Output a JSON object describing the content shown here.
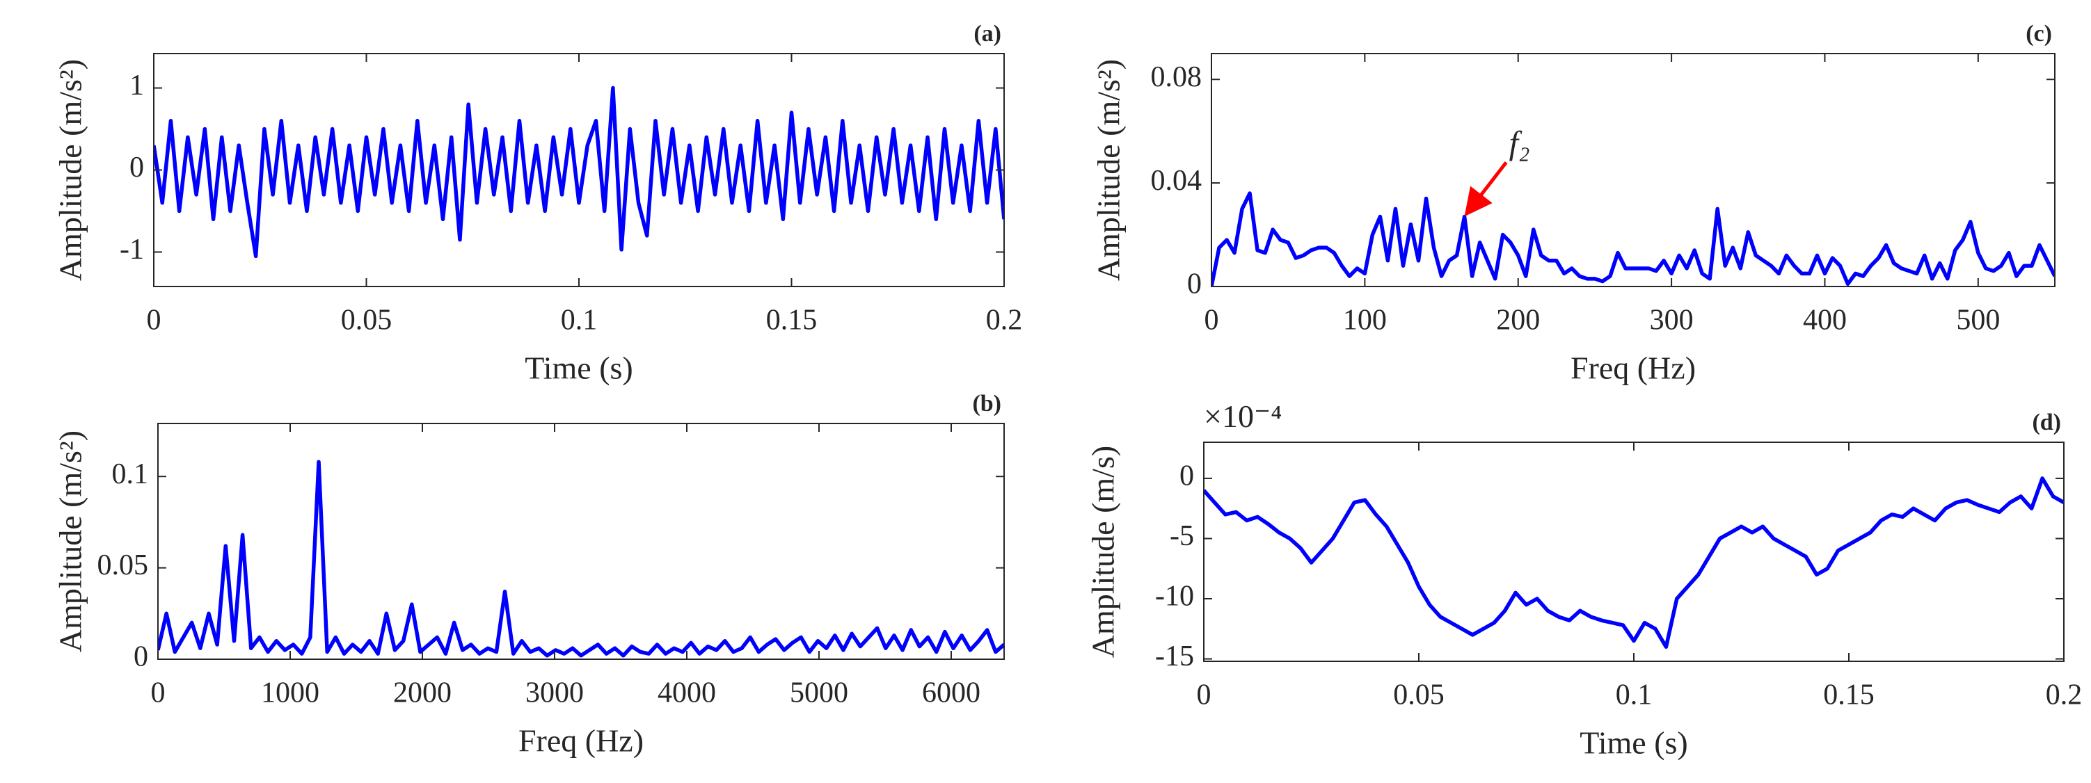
{
  "chart_data": [
    {
      "type": "line",
      "title": "(a)",
      "xlabel": "Time (s)",
      "ylabel": "Amplitude (m/s²)",
      "color": "#0000ff",
      "xlim": [
        0,
        0.2
      ],
      "xticks": [
        0,
        0.05,
        0.1,
        0.15,
        0.2
      ],
      "ylim": [
        -1.42,
        1.42
      ],
      "yticks": [
        -1,
        0,
        1
      ],
      "x": [
        0,
        0.002,
        0.004,
        0.006,
        0.008,
        0.01,
        0.012,
        0.014,
        0.016,
        0.018,
        0.02,
        0.022,
        0.024,
        0.026,
        0.028,
        0.03,
        0.032,
        0.034,
        0.036,
        0.038,
        0.04,
        0.042,
        0.044,
        0.046,
        0.048,
        0.05,
        0.052,
        0.054,
        0.056,
        0.058,
        0.06,
        0.062,
        0.064,
        0.066,
        0.068,
        0.07,
        0.072,
        0.074,
        0.076,
        0.078,
        0.08,
        0.082,
        0.084,
        0.086,
        0.088,
        0.09,
        0.092,
        0.094,
        0.096,
        0.098,
        0.1,
        0.102,
        0.104,
        0.106,
        0.108,
        0.11,
        0.112,
        0.114,
        0.116,
        0.118,
        0.12,
        0.122,
        0.124,
        0.126,
        0.128,
        0.13,
        0.132,
        0.134,
        0.136,
        0.138,
        0.14,
        0.142,
        0.144,
        0.146,
        0.148,
        0.15,
        0.152,
        0.154,
        0.156,
        0.158,
        0.16,
        0.162,
        0.164,
        0.166,
        0.168,
        0.17,
        0.172,
        0.174,
        0.176,
        0.178,
        0.18,
        0.182,
        0.184,
        0.186,
        0.188,
        0.19,
        0.192,
        0.194,
        0.196,
        0.198,
        0.2
      ],
      "values": [
        0.3,
        -0.4,
        0.6,
        -0.5,
        0.4,
        -0.3,
        0.5,
        -0.6,
        0.4,
        -0.5,
        0.3,
        -0.4,
        -1.05,
        0.5,
        -0.3,
        0.6,
        -0.4,
        0.3,
        -0.5,
        0.4,
        -0.3,
        0.5,
        -0.4,
        0.3,
        -0.5,
        0.4,
        -0.3,
        0.5,
        -0.4,
        0.3,
        -0.5,
        0.6,
        -0.4,
        0.3,
        -0.6,
        0.4,
        -0.85,
        0.8,
        -0.4,
        0.5,
        -0.3,
        0.4,
        -0.5,
        0.6,
        -0.4,
        0.3,
        -0.5,
        0.4,
        -0.3,
        0.5,
        -0.4,
        0.3,
        0.6,
        -0.5,
        1.0,
        -0.97,
        0.5,
        -0.4,
        -0.8,
        0.6,
        -0.3,
        0.5,
        -0.4,
        0.3,
        -0.5,
        0.4,
        -0.3,
        0.5,
        -0.4,
        0.3,
        -0.5,
        0.6,
        -0.4,
        0.3,
        -0.6,
        0.7,
        -0.4,
        0.5,
        -0.3,
        0.4,
        -0.5,
        0.6,
        -0.4,
        0.3,
        -0.5,
        0.4,
        -0.3,
        0.5,
        -0.4,
        0.3,
        -0.5,
        0.4,
        -0.6,
        0.5,
        -0.4,
        0.3,
        -0.5,
        0.6,
        -0.4,
        0.5,
        -0.6
      ]
    },
    {
      "type": "line",
      "title": "(b)",
      "xlabel": "Freq (Hz)",
      "ylabel": "Amplitude (m/s²)",
      "color": "#0000ff",
      "xlim": [
        0,
        6400
      ],
      "xticks": [
        0,
        1000,
        2000,
        3000,
        4000,
        5000,
        6000
      ],
      "ylim": [
        0,
        0.129
      ],
      "yticks": [
        0,
        0.05,
        0.1
      ],
      "x": [
        0,
        64,
        128,
        192,
        256,
        320,
        384,
        448,
        512,
        576,
        640,
        704,
        768,
        832,
        896,
        960,
        1024,
        1088,
        1152,
        1216,
        1280,
        1344,
        1408,
        1472,
        1536,
        1600,
        1664,
        1728,
        1792,
        1856,
        1920,
        1984,
        2048,
        2112,
        2176,
        2240,
        2304,
        2368,
        2432,
        2496,
        2560,
        2624,
        2688,
        2752,
        2816,
        2880,
        2944,
        3008,
        3072,
        3136,
        3200,
        3264,
        3328,
        3392,
        3456,
        3520,
        3584,
        3648,
        3712,
        3776,
        3840,
        3904,
        3968,
        4032,
        4096,
        4160,
        4224,
        4288,
        4352,
        4416,
        4480,
        4544,
        4608,
        4672,
        4736,
        4800,
        4864,
        4928,
        4992,
        5056,
        5120,
        5184,
        5248,
        5312,
        5376,
        5440,
        5504,
        5568,
        5632,
        5696,
        5760,
        5824,
        5888,
        5952,
        6016,
        6080,
        6144,
        6208,
        6272,
        6336,
        6400
      ],
      "values": [
        0.005,
        0.025,
        0.004,
        0.012,
        0.02,
        0.006,
        0.025,
        0.008,
        0.062,
        0.01,
        0.068,
        0.006,
        0.012,
        0.004,
        0.01,
        0.005,
        0.008,
        0.003,
        0.012,
        0.108,
        0.004,
        0.012,
        0.003,
        0.008,
        0.004,
        0.01,
        0.003,
        0.025,
        0.005,
        0.01,
        0.03,
        0.004,
        0.008,
        0.012,
        0.003,
        0.02,
        0.005,
        0.008,
        0.003,
        0.006,
        0.004,
        0.037,
        0.003,
        0.01,
        0.004,
        0.006,
        0.002,
        0.005,
        0.003,
        0.006,
        0.002,
        0.005,
        0.008,
        0.003,
        0.006,
        0.002,
        0.007,
        0.004,
        0.003,
        0.008,
        0.003,
        0.006,
        0.004,
        0.009,
        0.003,
        0.007,
        0.005,
        0.01,
        0.004,
        0.006,
        0.012,
        0.004,
        0.008,
        0.011,
        0.005,
        0.009,
        0.012,
        0.004,
        0.01,
        0.006,
        0.013,
        0.005,
        0.014,
        0.007,
        0.012,
        0.017,
        0.006,
        0.013,
        0.005,
        0.016,
        0.007,
        0.012,
        0.004,
        0.015,
        0.006,
        0.013,
        0.005,
        0.01,
        0.016,
        0.004,
        0.008
      ]
    },
    {
      "type": "line",
      "title": "(c)",
      "xlabel": "Freq (Hz)",
      "ylabel": "Amplitude (m/s²)",
      "color": "#0000ff",
      "xlim": [
        0,
        550
      ],
      "xticks": [
        0,
        100,
        200,
        300,
        400,
        500
      ],
      "ylim": [
        0,
        0.09
      ],
      "yticks": [
        0,
        0.04,
        0.08
      ],
      "x": [
        0,
        5,
        10,
        15,
        20,
        25,
        30,
        35,
        40,
        45,
        50,
        55,
        60,
        65,
        70,
        75,
        80,
        85,
        90,
        95,
        100,
        105,
        110,
        115,
        120,
        125,
        130,
        135,
        140,
        145,
        150,
        155,
        160,
        165,
        170,
        175,
        180,
        185,
        190,
        195,
        200,
        205,
        210,
        215,
        220,
        225,
        230,
        235,
        240,
        245,
        250,
        255,
        260,
        265,
        270,
        275,
        280,
        285,
        290,
        295,
        300,
        305,
        310,
        315,
        320,
        325,
        330,
        335,
        340,
        345,
        350,
        355,
        360,
        365,
        370,
        375,
        380,
        385,
        390,
        395,
        400,
        405,
        410,
        415,
        420,
        425,
        430,
        435,
        440,
        445,
        450,
        455,
        460,
        465,
        470,
        475,
        480,
        485,
        490,
        495,
        500,
        505,
        510,
        515,
        520,
        525,
        530,
        535,
        540,
        545,
        550
      ],
      "values": [
        0,
        0.015,
        0.018,
        0.013,
        0.03,
        0.036,
        0.014,
        0.013,
        0.022,
        0.018,
        0.017,
        0.011,
        0.012,
        0.014,
        0.015,
        0.015,
        0.013,
        0.008,
        0.004,
        0.007,
        0.005,
        0.02,
        0.027,
        0.01,
        0.03,
        0.008,
        0.024,
        0.01,
        0.034,
        0.015,
        0.004,
        0.01,
        0.012,
        0.027,
        0.004,
        0.017,
        0.01,
        0.003,
        0.02,
        0.017,
        0.012,
        0.004,
        0.022,
        0.012,
        0.01,
        0.01,
        0.005,
        0.007,
        0.004,
        0.003,
        0.003,
        0.002,
        0.004,
        0.013,
        0.007,
        0.007,
        0.007,
        0.007,
        0.006,
        0.01,
        0.005,
        0.012,
        0.007,
        0.014,
        0.005,
        0.003,
        0.03,
        0.008,
        0.015,
        0.007,
        0.021,
        0.012,
        0.01,
        0.008,
        0.005,
        0.012,
        0.008,
        0.005,
        0.005,
        0.012,
        0.005,
        0.011,
        0.008,
        0.001,
        0.005,
        0.004,
        0.008,
        0.011,
        0.016,
        0.009,
        0.007,
        0.006,
        0.005,
        0.012,
        0.003,
        0.009,
        0.003,
        0.014,
        0.018,
        0.025,
        0.013,
        0.007,
        0.006,
        0.008,
        0.013,
        0.004,
        0.008,
        0.008,
        0.016,
        0.01,
        0.004
      ],
      "annotation": {
        "text": "f₂",
        "x": 165,
        "y": 0.027,
        "color": "#ff0000"
      }
    },
    {
      "type": "line",
      "title": "(d)",
      "xlabel": "Time (s)",
      "ylabel": "Amplitude (m/s)",
      "exponent_label": "×10⁻⁴",
      "color": "#0000ff",
      "xlim": [
        0,
        0.2
      ],
      "xticks": [
        0,
        0.05,
        0.1,
        0.15,
        0.2
      ],
      "ylim": [
        -15.2,
        3
      ],
      "yticks": [
        -15,
        -10,
        -5,
        0
      ],
      "x": [
        0,
        0.0025,
        0.005,
        0.0075,
        0.01,
        0.0125,
        0.015,
        0.0175,
        0.02,
        0.0225,
        0.025,
        0.0275,
        0.03,
        0.0325,
        0.035,
        0.0375,
        0.04,
        0.0425,
        0.045,
        0.0475,
        0.05,
        0.0525,
        0.055,
        0.0575,
        0.06,
        0.0625,
        0.065,
        0.0675,
        0.07,
        0.0725,
        0.075,
        0.0775,
        0.08,
        0.0825,
        0.085,
        0.0875,
        0.09,
        0.0925,
        0.095,
        0.0975,
        0.1,
        0.1025,
        0.105,
        0.1075,
        0.11,
        0.1125,
        0.115,
        0.1175,
        0.12,
        0.1225,
        0.125,
        0.1275,
        0.13,
        0.1325,
        0.135,
        0.1375,
        0.14,
        0.1425,
        0.145,
        0.1475,
        0.15,
        0.1525,
        0.155,
        0.1575,
        0.16,
        0.1625,
        0.165,
        0.1675,
        0.17,
        0.1725,
        0.175,
        0.1775,
        0.18,
        0.1825,
        0.185,
        0.1875,
        0.19,
        0.1925,
        0.195,
        0.1975,
        0.2
      ],
      "values": [
        -1,
        -2,
        -3,
        -2.8,
        -3.5,
        -3.2,
        -3.8,
        -4.5,
        -5,
        -5.8,
        -7,
        -6,
        -5,
        -3.5,
        -2,
        -1.8,
        -3,
        -4,
        -5.5,
        -7,
        -9,
        -10.5,
        -11.5,
        -12,
        -12.5,
        -13,
        -12.5,
        -12,
        -11,
        -9.5,
        -10.5,
        -10,
        -11,
        -11.5,
        -11.8,
        -11,
        -11.5,
        -11.8,
        -12,
        -12.2,
        -13.5,
        -12,
        -12.5,
        -14,
        -10,
        -9,
        -8,
        -6.5,
        -5,
        -4.5,
        -4,
        -4.5,
        -4,
        -5,
        -5.5,
        -6,
        -6.5,
        -8,
        -7.5,
        -6,
        -5.5,
        -5,
        -4.5,
        -3.5,
        -3,
        -3.2,
        -2.5,
        -3,
        -3.5,
        -2.5,
        -2,
        -1.8,
        -2.2,
        -2.5,
        -2.8,
        -2,
        -1.5,
        -2.5,
        0,
        -1.5,
        -2
      ]
    }
  ]
}
